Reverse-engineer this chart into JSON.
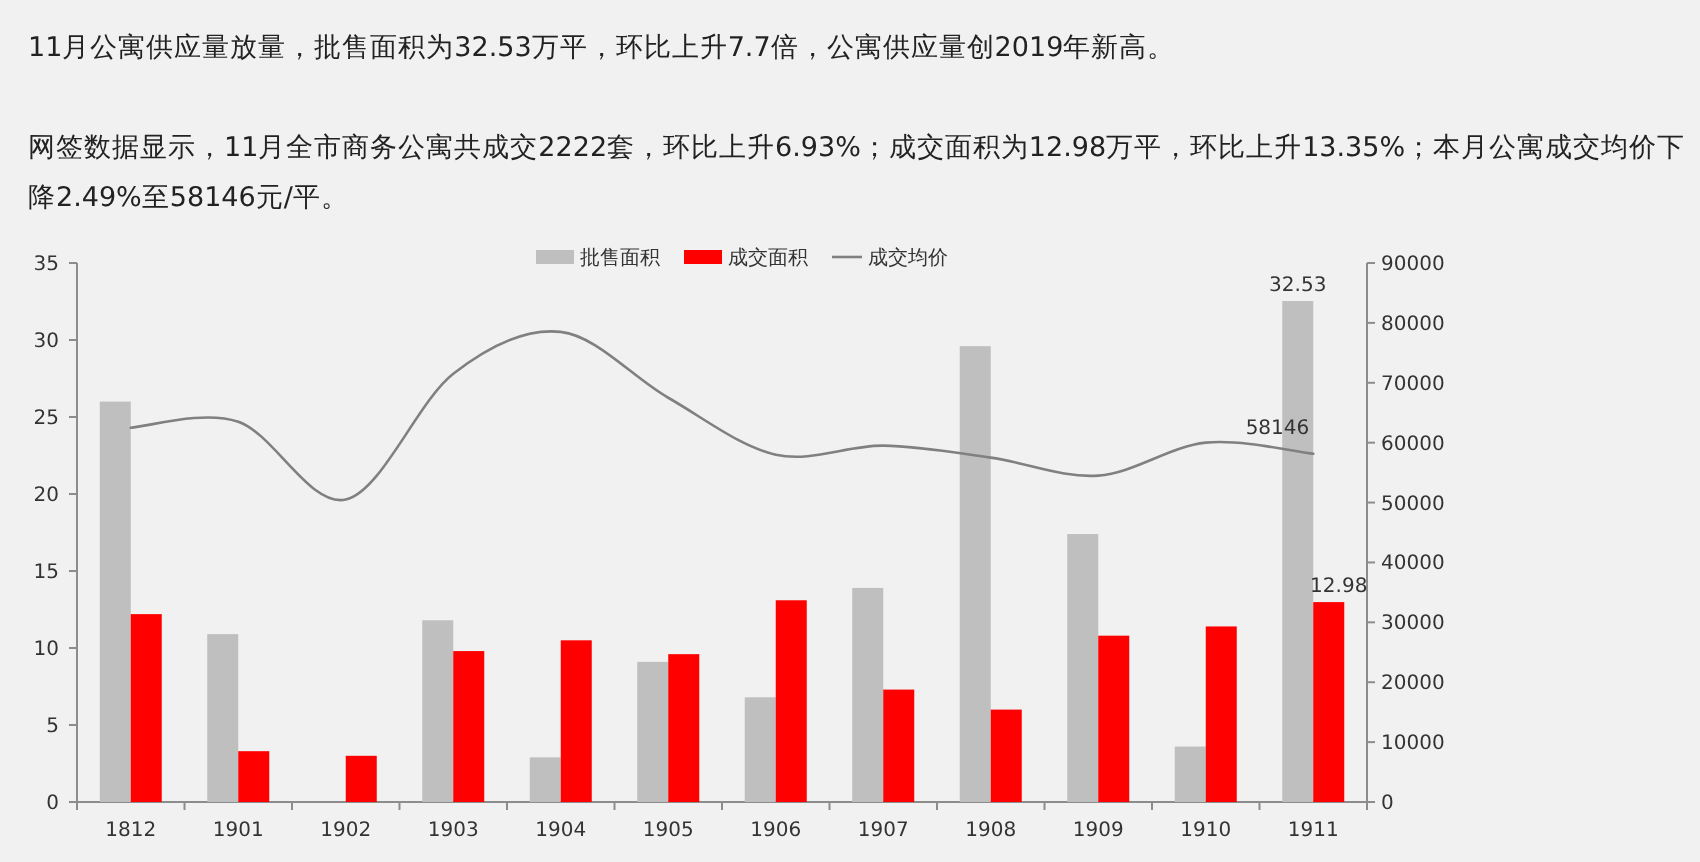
{
  "chart_data": {
    "type": "bar",
    "title": "11月公寓供应量放量，批售面积为32.53万平，环比上升7.7倍，公寓供应量创2019年新高。",
    "subtitle": "网签数据显示，11月全市商务公寓共成交2222套，环比上升6.93%；成交面积为12.98万平，环比上升13.35%；本月公寓成交均价下降2.49%至58146元/平。",
    "categories": [
      "1812",
      "1901",
      "1902",
      "1903",
      "1904",
      "1905",
      "1906",
      "1907",
      "1908",
      "1909",
      "1910",
      "1911"
    ],
    "series": [
      {
        "name": "批售面积",
        "color": "#bfbfbf",
        "values": [
          26.0,
          10.9,
          null,
          11.8,
          2.9,
          9.1,
          6.8,
          13.9,
          29.6,
          17.4,
          3.6,
          32.53
        ],
        "value_labels": [
          null,
          null,
          null,
          null,
          null,
          null,
          null,
          null,
          null,
          null,
          null,
          "32.53"
        ]
      },
      {
        "name": "成交面积",
        "color": "#ff0000",
        "values": [
          12.2,
          3.3,
          3.0,
          9.8,
          10.5,
          9.6,
          13.1,
          7.3,
          6.0,
          10.8,
          11.4,
          12.98
        ],
        "value_labels": [
          null,
          null,
          null,
          null,
          null,
          null,
          null,
          null,
          null,
          null,
          null,
          "12.98"
        ]
      },
      {
        "name": "成交均价",
        "type": "line",
        "axis": "y2",
        "color": "#808080",
        "values": [
          62500,
          63500,
          50500,
          71500,
          78500,
          67500,
          58000,
          59500,
          57500,
          54500,
          60000,
          58146
        ],
        "value_labels": [
          null,
          null,
          null,
          null,
          null,
          null,
          null,
          null,
          null,
          null,
          null,
          "58146"
        ]
      }
    ],
    "ylim": [
      0,
      35
    ],
    "yticks": [
      0,
      5,
      10,
      15,
      20,
      25,
      30,
      35
    ],
    "y2lim": [
      0,
      90000
    ],
    "y2ticks": [
      0,
      10000,
      20000,
      30000,
      40000,
      50000,
      60000,
      70000,
      80000,
      90000
    ],
    "legend": "top"
  }
}
